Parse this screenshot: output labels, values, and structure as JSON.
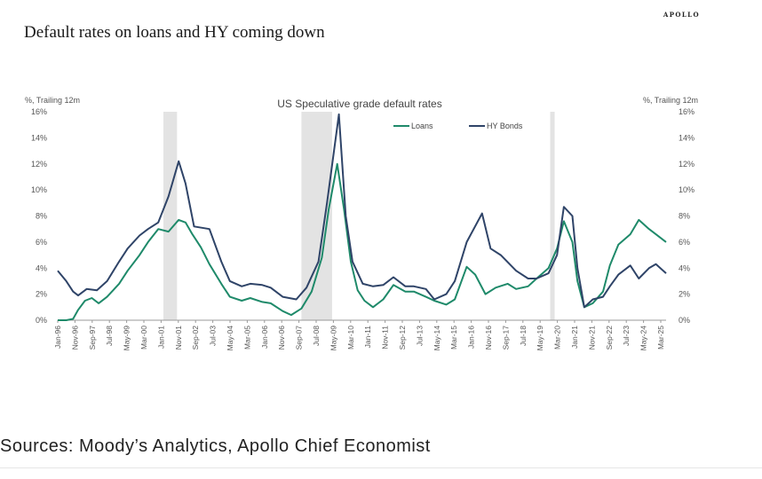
{
  "brand": "APOLLO",
  "headline": "Default rates on loans and HY coming down",
  "source": "Sources: Moody’s Analytics, Apollo Chief Economist",
  "chart_data": {
    "type": "line",
    "title": "US Speculative grade default rates",
    "ylabel_left": "%, Trailing 12m",
    "ylabel_right": "%, Trailing 12m",
    "ylim": [
      0,
      16
    ],
    "y_ticks": [
      "0%",
      "2%",
      "4%",
      "6%",
      "8%",
      "10%",
      "12%",
      "14%",
      "16%"
    ],
    "x_range": [
      "1996-01",
      "2025-10"
    ],
    "x_ticks": [
      "Jan-96",
      "Nov-96",
      "Sep-97",
      "Jul-98",
      "May-99",
      "Mar-00",
      "Jan-01",
      "Nov-01",
      "Sep-02",
      "Jul-03",
      "May-04",
      "Mar-05",
      "Jan-06",
      "Nov-06",
      "Sep-07",
      "Jul-08",
      "May-09",
      "Mar-10",
      "Jan-11",
      "Nov-11",
      "Sep-12",
      "Jul-13",
      "May-14",
      "Mar-15",
      "Jan-16",
      "Nov-16",
      "Sep-17",
      "Jul-18",
      "May-19",
      "Mar-20",
      "Jan-21",
      "Nov-21",
      "Sep-22",
      "Jul-23",
      "May-24",
      "Mar-25"
    ],
    "recessions": [
      [
        "2001-03",
        "2001-11"
      ],
      [
        "2007-12",
        "2009-06"
      ],
      [
        "2020-02",
        "2020-04"
      ]
    ],
    "legend_position": "top-center",
    "grid": false,
    "colors": {
      "loans": "#1f8a6a",
      "hy": "#2f4468",
      "recession": "#e3e3e3"
    },
    "series": [
      {
        "name": "Loans",
        "points": [
          [
            "1996-01",
            0.0
          ],
          [
            "1996-06",
            0.0
          ],
          [
            "1996-10",
            0.1
          ],
          [
            "1997-01",
            0.8
          ],
          [
            "1997-05",
            1.5
          ],
          [
            "1997-09",
            1.7
          ],
          [
            "1998-01",
            1.3
          ],
          [
            "1998-06",
            1.8
          ],
          [
            "1999-01",
            2.8
          ],
          [
            "1999-06",
            3.8
          ],
          [
            "2000-01",
            5.0
          ],
          [
            "2000-06",
            6.0
          ],
          [
            "2000-12",
            7.0
          ],
          [
            "2001-06",
            6.8
          ],
          [
            "2001-12",
            7.7
          ],
          [
            "2002-04",
            7.5
          ],
          [
            "2002-08",
            6.6
          ],
          [
            "2003-01",
            5.6
          ],
          [
            "2003-06",
            4.3
          ],
          [
            "2004-01",
            2.8
          ],
          [
            "2004-06",
            1.8
          ],
          [
            "2005-01",
            1.5
          ],
          [
            "2005-06",
            1.7
          ],
          [
            "2006-01",
            1.4
          ],
          [
            "2006-06",
            1.3
          ],
          [
            "2007-01",
            0.7
          ],
          [
            "2007-06",
            0.4
          ],
          [
            "2007-12",
            0.9
          ],
          [
            "2008-06",
            2.2
          ],
          [
            "2008-12",
            4.8
          ],
          [
            "2009-04",
            8.5
          ],
          [
            "2009-09",
            12.0
          ],
          [
            "2010-01",
            8.5
          ],
          [
            "2010-05",
            4.5
          ],
          [
            "2010-09",
            2.3
          ],
          [
            "2011-01",
            1.5
          ],
          [
            "2011-06",
            1.0
          ],
          [
            "2011-12",
            1.6
          ],
          [
            "2012-06",
            2.7
          ],
          [
            "2013-01",
            2.2
          ],
          [
            "2013-06",
            2.2
          ],
          [
            "2014-01",
            1.8
          ],
          [
            "2014-06",
            1.5
          ],
          [
            "2015-01",
            1.2
          ],
          [
            "2015-06",
            1.6
          ],
          [
            "2016-01",
            4.1
          ],
          [
            "2016-06",
            3.5
          ],
          [
            "2016-12",
            2.0
          ],
          [
            "2017-06",
            2.5
          ],
          [
            "2018-01",
            2.8
          ],
          [
            "2018-06",
            2.4
          ],
          [
            "2019-01",
            2.6
          ],
          [
            "2019-06",
            3.2
          ],
          [
            "2020-01",
            4.0
          ],
          [
            "2020-06",
            5.5
          ],
          [
            "2020-10",
            7.6
          ],
          [
            "2021-03",
            6.0
          ],
          [
            "2021-06",
            3.0
          ],
          [
            "2021-10",
            1.0
          ],
          [
            "2022-03",
            1.3
          ],
          [
            "2022-09",
            2.2
          ],
          [
            "2023-01",
            4.2
          ],
          [
            "2023-06",
            5.8
          ],
          [
            "2024-01",
            6.6
          ],
          [
            "2024-06",
            7.7
          ],
          [
            "2024-12",
            7.0
          ],
          [
            "2025-04",
            6.6
          ],
          [
            "2025-10",
            6.0
          ]
        ]
      },
      {
        "name": "HY Bonds",
        "points": [
          [
            "1996-01",
            3.8
          ],
          [
            "1996-06",
            3.0
          ],
          [
            "1996-10",
            2.2
          ],
          [
            "1997-01",
            1.9
          ],
          [
            "1997-06",
            2.4
          ],
          [
            "1997-12",
            2.3
          ],
          [
            "1998-06",
            3.0
          ],
          [
            "1999-01",
            4.5
          ],
          [
            "1999-06",
            5.5
          ],
          [
            "2000-01",
            6.5
          ],
          [
            "2000-06",
            7.0
          ],
          [
            "2000-12",
            7.5
          ],
          [
            "2001-06",
            9.5
          ],
          [
            "2001-12",
            12.2
          ],
          [
            "2002-04",
            10.5
          ],
          [
            "2002-09",
            7.2
          ],
          [
            "2003-06",
            7.0
          ],
          [
            "2004-01",
            4.5
          ],
          [
            "2004-06",
            3.0
          ],
          [
            "2005-01",
            2.6
          ],
          [
            "2005-06",
            2.8
          ],
          [
            "2006-01",
            2.7
          ],
          [
            "2006-06",
            2.5
          ],
          [
            "2007-01",
            1.8
          ],
          [
            "2007-09",
            1.6
          ],
          [
            "2008-03",
            2.5
          ],
          [
            "2008-10",
            4.5
          ],
          [
            "2009-03",
            9.0
          ],
          [
            "2009-10",
            15.8
          ],
          [
            "2010-02",
            8.0
          ],
          [
            "2010-06",
            4.5
          ],
          [
            "2010-12",
            2.8
          ],
          [
            "2011-06",
            2.6
          ],
          [
            "2011-12",
            2.7
          ],
          [
            "2012-06",
            3.3
          ],
          [
            "2013-01",
            2.6
          ],
          [
            "2013-06",
            2.6
          ],
          [
            "2014-01",
            2.4
          ],
          [
            "2014-06",
            1.6
          ],
          [
            "2015-01",
            2.0
          ],
          [
            "2015-06",
            3.0
          ],
          [
            "2016-01",
            6.0
          ],
          [
            "2016-10",
            8.2
          ],
          [
            "2017-03",
            5.5
          ],
          [
            "2017-09",
            5.0
          ],
          [
            "2018-06",
            3.8
          ],
          [
            "2019-01",
            3.2
          ],
          [
            "2019-06",
            3.2
          ],
          [
            "2020-01",
            3.6
          ],
          [
            "2020-06",
            5.0
          ],
          [
            "2020-10",
            8.7
          ],
          [
            "2021-03",
            8.0
          ],
          [
            "2021-06",
            4.0
          ],
          [
            "2021-10",
            1.0
          ],
          [
            "2022-03",
            1.6
          ],
          [
            "2022-09",
            1.8
          ],
          [
            "2023-01",
            2.6
          ],
          [
            "2023-06",
            3.5
          ],
          [
            "2024-01",
            4.2
          ],
          [
            "2024-06",
            3.2
          ],
          [
            "2024-12",
            4.0
          ],
          [
            "2025-04",
            4.3
          ],
          [
            "2025-10",
            3.6
          ]
        ]
      }
    ]
  }
}
